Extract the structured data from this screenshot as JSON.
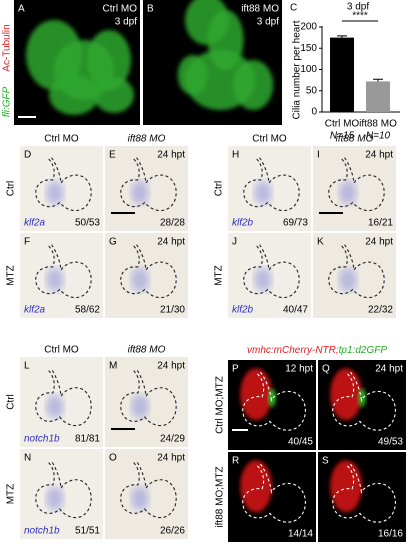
{
  "panel_a": {
    "letter": "A",
    "condition": "Ctrl MO",
    "stage": "3 dpf"
  },
  "panel_b": {
    "letter": "B",
    "condition": "ift88 MO",
    "stage": "3 dpf"
  },
  "stain_labels": [
    "Ac-Tubulin",
    "fli:GFP"
  ],
  "chart_data": {
    "type": "bar",
    "letter": "C",
    "title": "3 dpf",
    "y_label": "Cilia number per heart",
    "categories": [
      "Ctrl MO",
      "ift88 MO"
    ],
    "sample_sizes": [
      "N=15",
      "N=10"
    ],
    "values": [
      175,
      72
    ],
    "errors": [
      4,
      5
    ],
    "colors": [
      "#000000",
      "#999999"
    ],
    "ylim": [
      0,
      200
    ],
    "yticks": [
      0,
      50,
      100,
      150,
      200
    ],
    "significance": "****"
  },
  "ish_blocks": [
    {
      "headers": [
        "Ctrl MO",
        "ift88 MO"
      ],
      "rows": [
        "Ctrl",
        "MTZ"
      ],
      "panels": [
        {
          "letter": "D",
          "gene": "klf2a",
          "count": "50/53"
        },
        {
          "letter": "E",
          "time": "24 hpt",
          "count": "28/28"
        },
        {
          "letter": "F",
          "gene": "klf2a",
          "count": "58/62"
        },
        {
          "letter": "G",
          "time": "24 hpt",
          "count": "21/30"
        }
      ]
    },
    {
      "headers": [
        "Ctrl MO",
        "ift88 MO"
      ],
      "rows": [
        "Ctrl",
        "MTZ"
      ],
      "panels": [
        {
          "letter": "H",
          "gene": "klf2b",
          "count": "69/73"
        },
        {
          "letter": "I",
          "time": "24 hpt",
          "count": "16/21"
        },
        {
          "letter": "J",
          "gene": "klf2b",
          "count": "40/47"
        },
        {
          "letter": "K",
          "time": "24 hpt",
          "count": "22/32"
        }
      ]
    },
    {
      "headers": [
        "Ctrl MO",
        "ift88 MO"
      ],
      "rows": [
        "Ctrl",
        "MTZ"
      ],
      "panels": [
        {
          "letter": "L",
          "gene": "notch1b",
          "count": "81/81"
        },
        {
          "letter": "M",
          "time": "24 hpt",
          "count": "24/29"
        },
        {
          "letter": "N",
          "gene": "notch1b",
          "count": "51/51"
        },
        {
          "letter": "O",
          "time": "24 hpt",
          "count": "26/26"
        }
      ]
    }
  ],
  "fluorescence": {
    "title_red": "vmhc:mCherry-NTR;",
    "title_green": "tp1:d2GFP",
    "rows": [
      "Ctrl MO;MTZ",
      "ift88 MO;MTZ"
    ],
    "panels": [
      {
        "letter": "P",
        "time": "12 hpt",
        "count": "40/45"
      },
      {
        "letter": "Q",
        "time": "24 hpt",
        "count": "49/53"
      },
      {
        "letter": "R",
        "count": "14/14"
      },
      {
        "letter": "S",
        "count": "16/16"
      }
    ]
  }
}
